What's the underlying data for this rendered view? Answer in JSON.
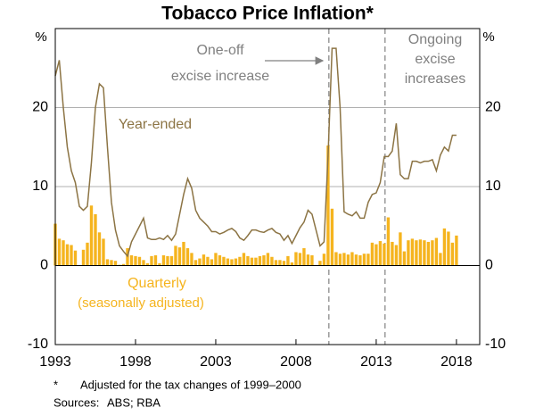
{
  "chart_data": {
    "type": "bar+line",
    "title": "Tobacco Price Inflation*",
    "y_unit_left": "%",
    "y_unit_right": "%",
    "x": [
      1993,
      1993.25,
      1993.5,
      1993.75,
      1994,
      1994.25,
      1994.5,
      1994.75,
      1995,
      1995.25,
      1995.5,
      1995.75,
      1996,
      1996.25,
      1996.5,
      1996.75,
      1997,
      1997.25,
      1997.5,
      1997.75,
      1998,
      1998.25,
      1998.5,
      1998.75,
      1999,
      1999.25,
      1999.5,
      1999.75,
      2000,
      2000.25,
      2000.5,
      2000.75,
      2001,
      2001.25,
      2001.5,
      2001.75,
      2002,
      2002.25,
      2002.5,
      2002.75,
      2003,
      2003.25,
      2003.5,
      2003.75,
      2004,
      2004.25,
      2004.5,
      2004.75,
      2005,
      2005.25,
      2005.5,
      2005.75,
      2006,
      2006.25,
      2006.5,
      2006.75,
      2007,
      2007.25,
      2007.5,
      2007.75,
      2008,
      2008.25,
      2008.5,
      2008.75,
      2009,
      2009.25,
      2009.5,
      2009.75,
      2010,
      2010.25,
      2010.5,
      2010.75,
      2011,
      2011.25,
      2011.5,
      2011.75,
      2012,
      2012.25,
      2012.5,
      2012.75,
      2013,
      2013.25,
      2013.5,
      2013.75,
      2014,
      2014.25,
      2014.5,
      2014.75,
      2015,
      2015.25,
      2015.5,
      2015.75,
      2016,
      2016.25,
      2016.5,
      2016.75,
      2017,
      2017.25,
      2017.5,
      2017.75,
      2018
    ],
    "series": [
      {
        "name": "Quarterly",
        "kind": "bar",
        "color": "#f5b41e",
        "values": [
          5.3,
          3.4,
          3.2,
          2.7,
          2.6,
          1.9,
          0,
          2.0,
          2.9,
          7.6,
          6.5,
          4.2,
          3.4,
          0.8,
          0.7,
          0.6,
          0.1,
          0.2,
          2.2,
          1.3,
          1.2,
          1.1,
          0.7,
          0.3,
          1.2,
          1.3,
          0.3,
          1.3,
          1.2,
          1.2,
          2.5,
          2.3,
          3.0,
          2.2,
          1.6,
          0.7,
          0.9,
          1.4,
          1.1,
          0.8,
          1.6,
          1.3,
          1.1,
          0.9,
          0.8,
          0.9,
          1.1,
          1.6,
          1.2,
          1.0,
          1.0,
          1.2,
          1.3,
          1.6,
          1.1,
          0.7,
          0.7,
          0.6,
          1.2,
          0.4,
          1.7,
          1.6,
          2.2,
          1.4,
          1.3,
          0,
          0.6,
          1.5,
          15.2,
          7.2,
          1.7,
          1.5,
          1.6,
          1.4,
          1.7,
          1.4,
          1.3,
          1.5,
          1.5,
          2.9,
          2.7,
          3.1,
          2.8,
          6.1,
          3.0,
          2.6,
          4.2,
          1.8,
          3.2,
          3.4,
          3.2,
          3.3,
          3.2,
          3.0,
          3.2,
          3.5,
          1.6,
          4.7,
          4.3,
          2.9,
          3.8
        ]
      },
      {
        "name": "Year-ended",
        "kind": "line",
        "color": "#8c7444",
        "values": [
          24,
          26,
          20,
          15,
          12,
          10.5,
          7.5,
          7,
          7.5,
          13,
          20,
          23,
          22.5,
          15,
          8,
          4.5,
          2.5,
          1.8,
          1.2,
          3,
          4,
          5,
          6,
          3.5,
          3.3,
          3.3,
          3.5,
          3.3,
          3.8,
          3.2,
          4,
          6.5,
          9,
          11,
          9.8,
          7,
          6,
          5.5,
          5,
          4.3,
          4.3,
          4,
          4.2,
          4.5,
          4.7,
          4.3,
          3.5,
          3.2,
          3.8,
          4.5,
          4.5,
          4.3,
          4.2,
          4.5,
          4.7,
          4.2,
          4.0,
          3.2,
          3.8,
          2.8,
          3.8,
          4.8,
          5.5,
          7,
          6.5,
          4.5,
          2.5,
          3,
          14,
          27.5,
          27.5,
          20,
          6.8,
          6.5,
          6.3,
          6.8,
          6,
          6,
          8,
          9,
          9.2,
          10.5,
          13.8,
          13.8,
          14.5,
          18,
          11.5,
          11,
          11,
          13.2,
          13.2,
          13,
          13.2,
          13.2,
          13.4,
          12,
          14,
          15,
          14.5,
          16.5,
          16.5
        ]
      }
    ],
    "xlim": [
      1993,
      2019.45
    ],
    "xticks": [
      1993,
      1998,
      2003,
      2008,
      2013,
      2018
    ],
    "ylim": [
      -10,
      30
    ],
    "yticks": [
      -10,
      0,
      10,
      20
    ],
    "grid": true,
    "vlines": [
      2010.05,
      2013.55
    ],
    "annotations": {
      "one_off": [
        "One-off",
        "excise increase"
      ],
      "ongoing": [
        "Ongoing",
        "excise",
        "increases"
      ],
      "seasonal": "(seasonally adjusted)"
    },
    "footnote": {
      "marker": "*",
      "text": "Adjusted for the tax changes of 1999–2000"
    },
    "sources": {
      "label": "Sources:",
      "text": "ABS; RBA"
    }
  }
}
